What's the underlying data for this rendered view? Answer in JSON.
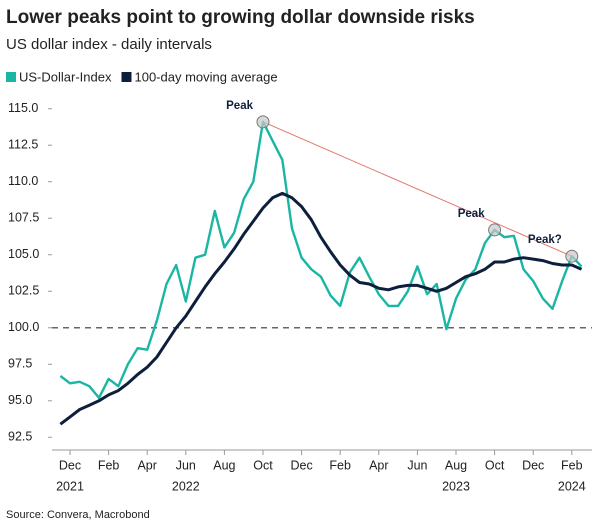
{
  "chart_data": {
    "type": "line",
    "title": "Lower peaks point to growing dollar downside risks",
    "subtitle": "US dollar index - daily intervals",
    "source": "Source: Convera, Macrobond",
    "categories": [
      null,
      "Dec",
      null,
      null,
      null,
      "Feb",
      null,
      null,
      null,
      "Apr",
      null,
      null,
      null,
      "Jun",
      null,
      null,
      null,
      "Aug",
      null,
      null,
      null,
      "Oct",
      null,
      null,
      null,
      "Dec",
      null,
      null,
      null,
      "Feb",
      null,
      null,
      null,
      "Apr",
      null,
      null,
      null,
      "Jun",
      null,
      null,
      null,
      "Aug",
      null,
      null,
      null,
      "Oct",
      null,
      null,
      null,
      "Dec",
      null,
      null,
      null,
      "Feb",
      null
    ],
    "year_labels": [
      null,
      "2021",
      null,
      null,
      null,
      null,
      null,
      null,
      null,
      null,
      null,
      null,
      null,
      "2022",
      null,
      null,
      null,
      null,
      null,
      null,
      null,
      null,
      null,
      null,
      null,
      null,
      null,
      null,
      null,
      null,
      null,
      null,
      null,
      null,
      null,
      null,
      null,
      null,
      null,
      null,
      null,
      "2023",
      null,
      null,
      null,
      null,
      null,
      null,
      null,
      null,
      null,
      null,
      null,
      "2024",
      null
    ],
    "series": [
      {
        "name": "US-Dollar-Index",
        "color": "#19b6a3",
        "values": [
          96.7,
          96.2,
          96.3,
          96.0,
          95.2,
          96.5,
          96.0,
          97.5,
          98.6,
          98.5,
          100.5,
          103.0,
          104.3,
          101.8,
          104.8,
          105.0,
          108.0,
          105.5,
          106.5,
          108.8,
          110.0,
          114.1,
          112.8,
          111.5,
          106.8,
          104.8,
          104.0,
          103.5,
          102.2,
          101.5,
          103.8,
          104.8,
          103.5,
          102.3,
          101.5,
          101.5,
          102.5,
          104.2,
          102.3,
          103.0,
          99.9,
          102.0,
          103.3,
          104.0,
          105.8,
          106.7,
          106.2,
          106.3,
          104.0,
          103.2,
          102.0,
          101.3,
          103.2,
          104.9,
          104.2
        ]
      },
      {
        "name": "100-day moving average",
        "color": "#0d1f3c",
        "values": [
          93.4,
          93.9,
          94.4,
          94.7,
          95.0,
          95.4,
          95.7,
          96.2,
          96.8,
          97.3,
          98.0,
          99.0,
          100.0,
          100.8,
          101.8,
          102.8,
          103.7,
          104.5,
          105.4,
          106.4,
          107.3,
          108.2,
          108.9,
          109.2,
          108.9,
          108.3,
          107.4,
          106.2,
          105.2,
          104.3,
          103.6,
          103.1,
          103.0,
          102.7,
          102.6,
          102.8,
          102.9,
          102.9,
          102.7,
          102.5,
          102.7,
          103.1,
          103.5,
          103.7,
          104.0,
          104.5,
          104.5,
          104.7,
          104.8,
          104.7,
          104.6,
          104.4,
          104.3,
          104.3,
          104.0
        ]
      }
    ],
    "reference_line": 100,
    "annotations": [
      {
        "text": "Peak",
        "value": 114.1
      },
      {
        "text": "Peak",
        "value": 106.7
      },
      {
        "text": "Peak?",
        "value": 104.9
      }
    ],
    "ylim": [
      92,
      115.5
    ],
    "yticks": [
      92.5,
      {
        "value": 95,
        "label": "95.0"
      },
      97.5,
      {
        "value": 100,
        "label": "100.0"
      },
      102.5,
      {
        "value": 105,
        "label": "105.0"
      },
      107.5,
      {
        "value": 110,
        "label": "110.0"
      },
      112.5,
      {
        "value": 115,
        "label": "115.0"
      }
    ],
    "legend": "top-left"
  }
}
